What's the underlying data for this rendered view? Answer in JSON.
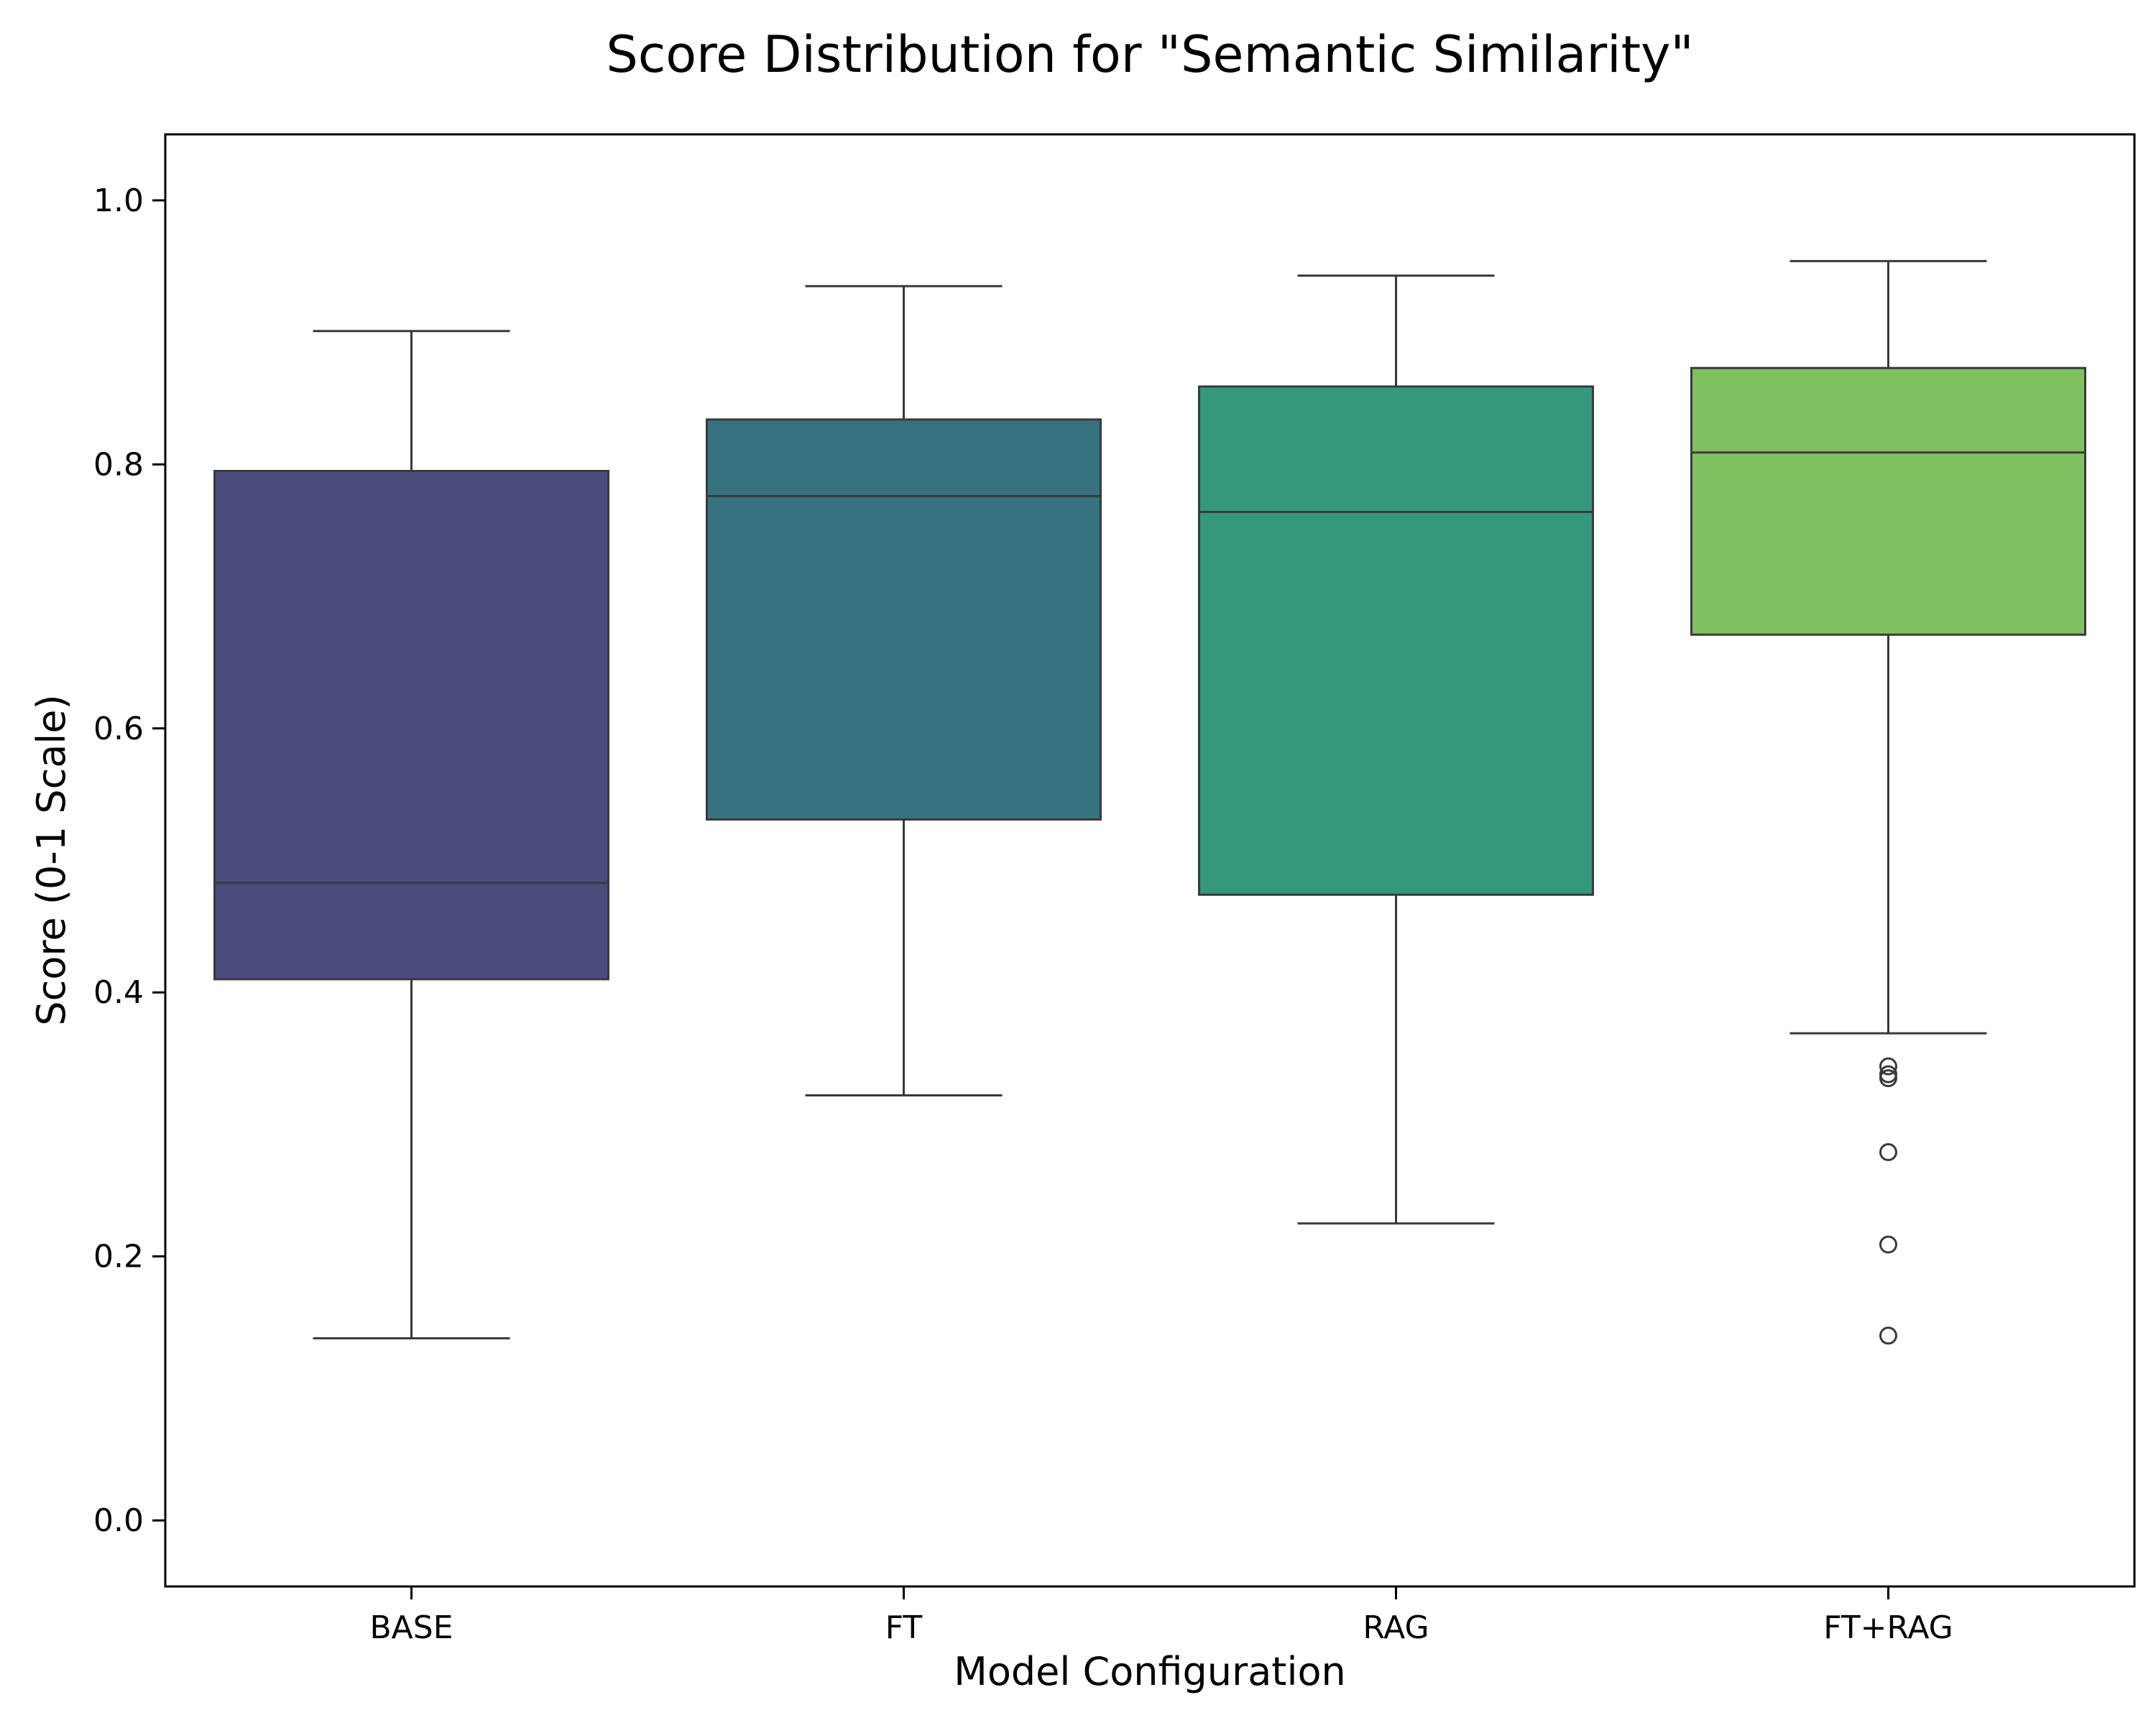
{
  "chart_data": {
    "type": "box",
    "title": "Score Distribution for \"Semantic Similarity\"",
    "xlabel": "Model Configuration",
    "ylabel": "Score (0-1 Scale)",
    "ylim": [
      -0.05,
      1.05
    ],
    "yticks": [
      "0.0",
      "0.2",
      "0.4",
      "0.6",
      "0.8",
      "1.0"
    ],
    "categories": [
      "BASE",
      "FT",
      "RAG",
      "FT+RAG"
    ],
    "boxes": [
      {
        "category": "BASE",
        "whisker_low": 0.138,
        "q1": 0.41,
        "median": 0.483,
        "q3": 0.795,
        "whisker_high": 0.901,
        "outliers": [],
        "color": "#4a4c7c"
      },
      {
        "category": "FT",
        "whisker_low": 0.322,
        "q1": 0.531,
        "median": 0.776,
        "q3": 0.834,
        "whisker_high": 0.935,
        "outliers": [],
        "color": "#377280"
      },
      {
        "category": "RAG",
        "whisker_low": 0.225,
        "q1": 0.474,
        "median": 0.764,
        "q3": 0.859,
        "whisker_high": 0.943,
        "outliers": [],
        "color": "#35977c"
      },
      {
        "category": "FT+RAG",
        "whisker_low": 0.369,
        "q1": 0.671,
        "median": 0.809,
        "q3": 0.873,
        "whisker_high": 0.954,
        "outliers": [
          0.344,
          0.338,
          0.335,
          0.279,
          0.209,
          0.14
        ],
        "color": "#7fc161"
      }
    ],
    "grid": false,
    "legend": "none"
  }
}
